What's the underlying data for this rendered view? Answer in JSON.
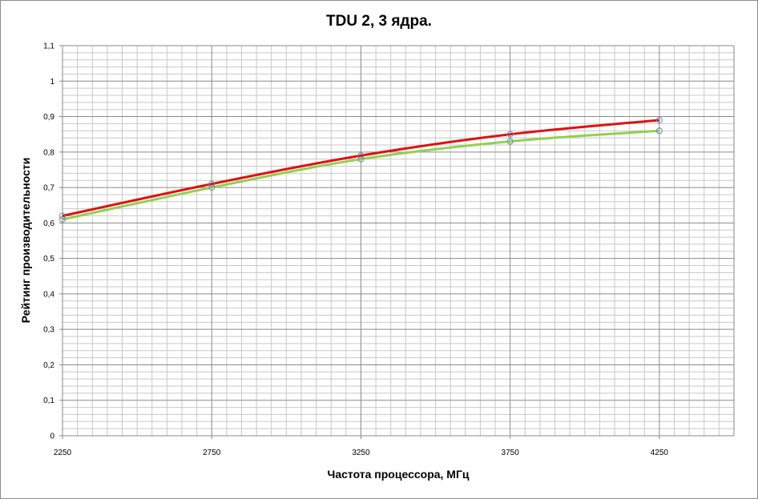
{
  "chart_data": {
    "type": "line",
    "title": "TDU 2, 3 ядра.",
    "xlabel": "Частота процессора, МГц",
    "ylabel": "Рейтинг производительности",
    "x": [
      2250,
      2750,
      3250,
      3750,
      4250
    ],
    "xlim": [
      2250,
      4500
    ],
    "ylim": [
      0,
      1.1
    ],
    "x_ticks": [
      "2250",
      "2750",
      "3250",
      "3750",
      "4250"
    ],
    "y_ticks": [
      "0",
      "0,1",
      "0,2",
      "0,3",
      "0,4",
      "0,5",
      "0,6",
      "0,7",
      "0,8",
      "0,9",
      "1",
      "1,1"
    ],
    "grid": true,
    "series": [
      {
        "color": "#e01010",
        "values": [
          0.62,
          0.71,
          0.79,
          0.85,
          0.89
        ]
      },
      {
        "color": "#92d050",
        "values": [
          0.61,
          0.7,
          0.78,
          0.83,
          0.86
        ]
      }
    ]
  }
}
